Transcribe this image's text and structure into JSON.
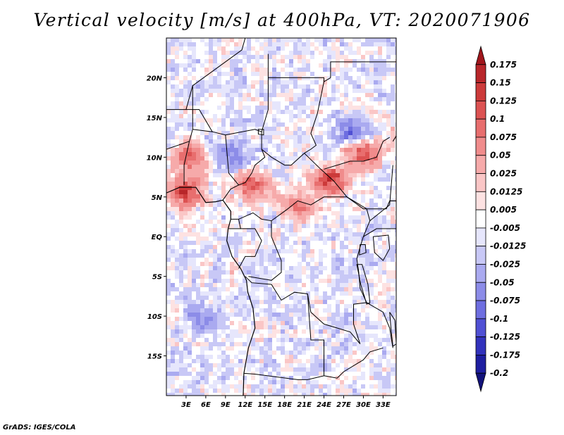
{
  "title": "Vertical velocity [m/s] at 400hPa, VT: 2020071906",
  "credit": "GrADS: IGES/COLA",
  "map": {
    "lon_range": [
      0,
      35
    ],
    "lat_range": [
      -20,
      25
    ],
    "lat_labels": [
      {
        "lat": 20,
        "label": "20N"
      },
      {
        "lat": 15,
        "label": "15N"
      },
      {
        "lat": 10,
        "label": "10N"
      },
      {
        "lat": 5,
        "label": "5N"
      },
      {
        "lat": 0,
        "label": "EQ"
      },
      {
        "lat": -5,
        "label": "5S"
      },
      {
        "lat": -10,
        "label": "10S"
      },
      {
        "lat": -15,
        "label": "15S"
      }
    ],
    "lon_labels": [
      {
        "lon": 3,
        "label": "3E"
      },
      {
        "lon": 6,
        "label": "6E"
      },
      {
        "lon": 9,
        "label": "9E"
      },
      {
        "lon": 12,
        "label": "12E"
      },
      {
        "lon": 15,
        "label": "15E"
      },
      {
        "lon": 18,
        "label": "18E"
      },
      {
        "lon": 21,
        "label": "21E"
      },
      {
        "lon": 24,
        "label": "24E"
      },
      {
        "lon": 27,
        "label": "27E"
      },
      {
        "lon": 30,
        "label": "30E"
      },
      {
        "lon": 33,
        "label": "33E"
      }
    ],
    "field": "vertical velocity, 400hPa",
    "features": [
      {
        "name": "updraft-west-africa",
        "lon": 3,
        "lat": 5.5,
        "value": 0.15
      },
      {
        "name": "updraft-chad",
        "lon": 25,
        "lat": 7,
        "value": 0.15
      },
      {
        "name": "updraft-sudan",
        "lon": 30,
        "lat": 10.5,
        "value": 0.125
      },
      {
        "name": "updraft-nigeria",
        "lon": 3.5,
        "lat": 10,
        "value": 0.1
      },
      {
        "name": "updraft-cameroon",
        "lon": 13,
        "lat": 6.5,
        "value": 0.1
      },
      {
        "name": "updraft-car",
        "lon": 20,
        "lat": 4,
        "value": 0.075
      },
      {
        "name": "downdraft-sudan",
        "lon": 28.5,
        "lat": 13,
        "value": -0.075
      },
      {
        "name": "downdraft-angola",
        "lon": 5,
        "lat": -10,
        "value": -0.05
      },
      {
        "name": "downdraft-central",
        "lon": 10,
        "lat": 10,
        "value": -0.05
      }
    ]
  },
  "colorbar": {
    "levels": [
      "0.175",
      "0.15",
      "0.125",
      "0.1",
      "0.075",
      "0.05",
      "0.025",
      "0.0125",
      "0.005",
      "-0.005",
      "-0.0125",
      "-0.025",
      "-0.05",
      "-0.075",
      "-0.1",
      "-0.125",
      "-0.175",
      "-0.2"
    ],
    "colors": [
      "#a0161c",
      "#b8262a",
      "#cc3a3a",
      "#dc5252",
      "#e86e6e",
      "#f08c8c",
      "#f6aaaa",
      "#fac6c6",
      "#fde2e2",
      "#ffffff",
      "#e6e6fc",
      "#c8c8f6",
      "#aaaaf0",
      "#8c8ce8",
      "#6e6ee0",
      "#5050d4",
      "#3232bc",
      "#1e1ea0",
      "#12127a"
    ]
  }
}
